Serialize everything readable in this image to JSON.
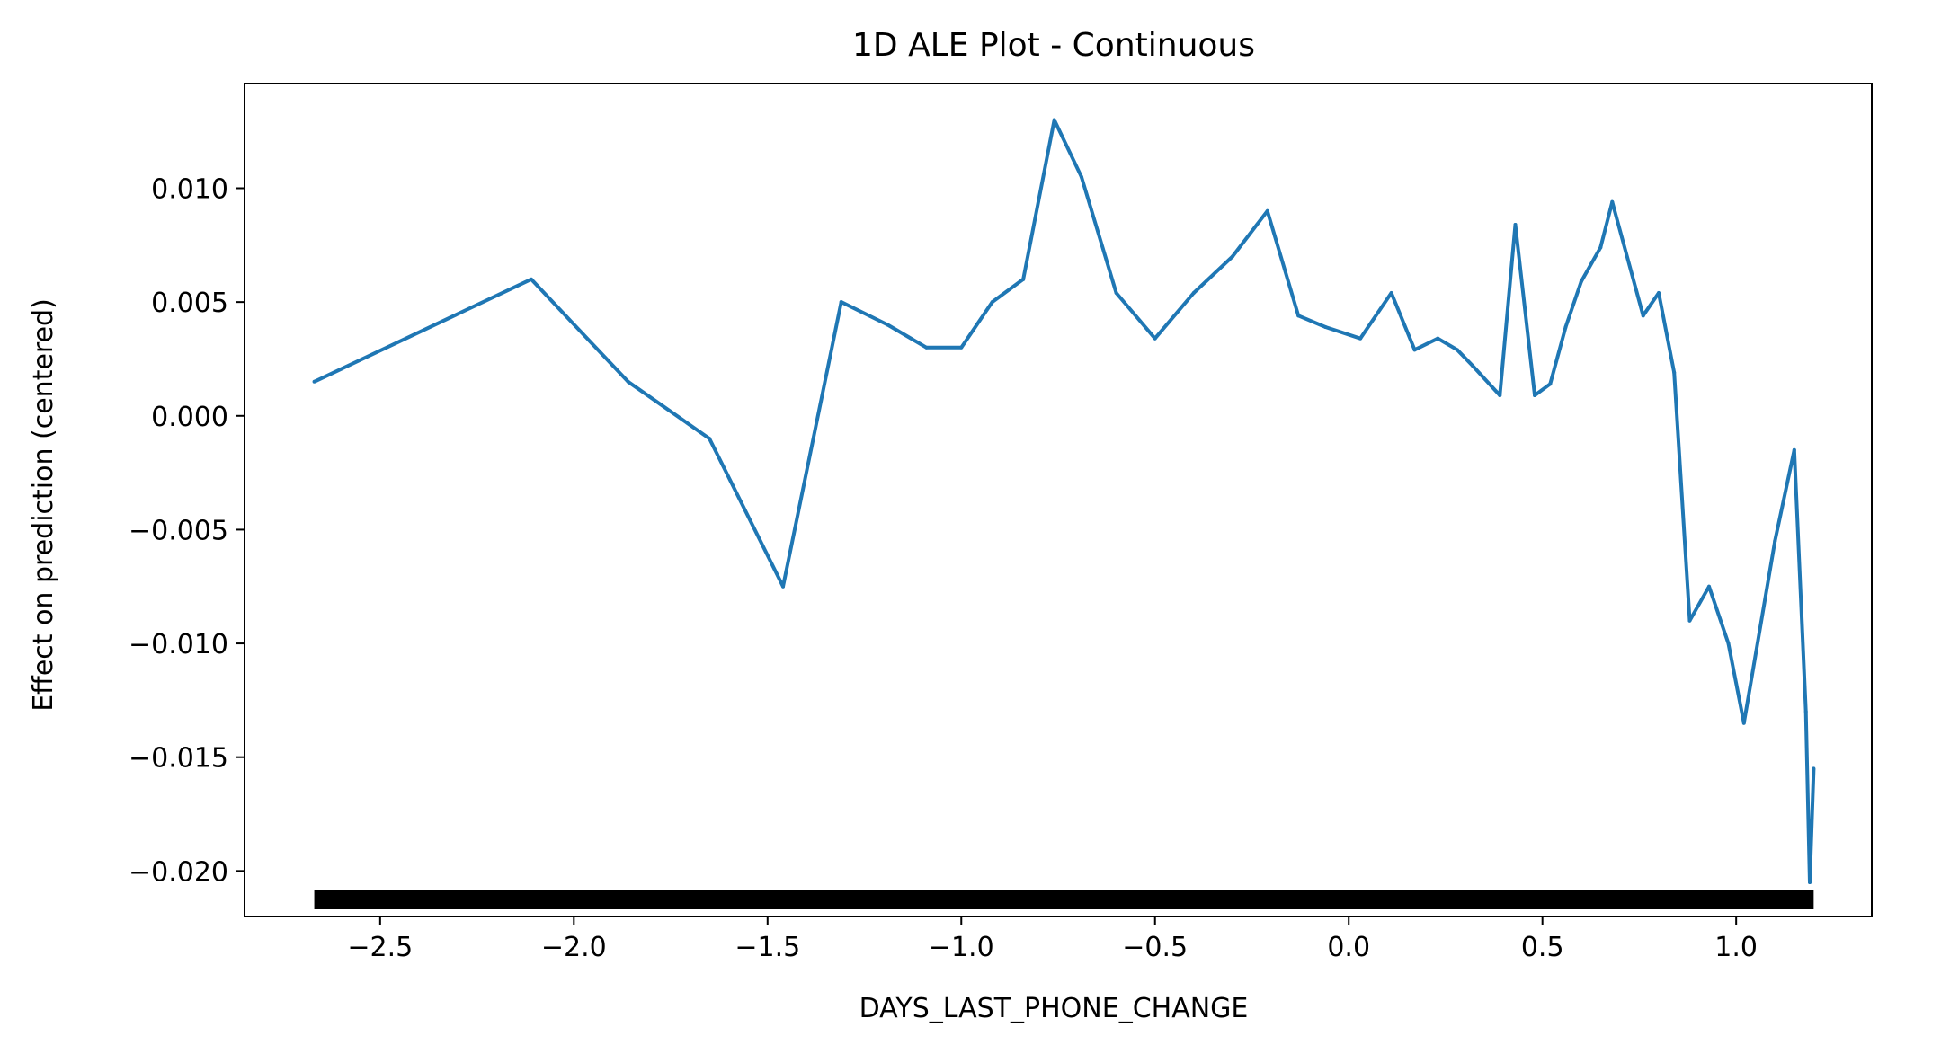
{
  "chart_data": {
    "type": "line",
    "title": "1D ALE Plot - Continuous",
    "xlabel": "DAYS_LAST_PHONE_CHANGE",
    "ylabel": "Effect on prediction (centered)",
    "xlim": [
      -2.85,
      1.35
    ],
    "ylim": [
      -0.022,
      0.0146
    ],
    "xticks": [
      -2.5,
      -2.0,
      -1.5,
      -1.0,
      -0.5,
      0.0,
      0.5,
      1.0
    ],
    "xtick_labels": [
      "−2.5",
      "−2.0",
      "−1.5",
      "−1.0",
      "−0.5",
      "0.0",
      "0.5",
      "1.0"
    ],
    "yticks": [
      -0.02,
      -0.015,
      -0.01,
      -0.005,
      0.0,
      0.005,
      0.01
    ],
    "ytick_labels": [
      "−0.020",
      "−0.015",
      "−0.010",
      "−0.005",
      "0.000",
      "0.005",
      "0.010"
    ],
    "grid": false,
    "series": [
      {
        "color": "#1f77b4",
        "x": [
          -2.67,
          -2.11,
          -1.86,
          -1.65,
          -1.46,
          -1.31,
          -1.19,
          -1.09,
          -1.0,
          -0.92,
          -0.84,
          -0.76,
          -0.69,
          -0.6,
          -0.5,
          -0.4,
          -0.3,
          -0.21,
          -0.13,
          -0.06,
          0.03,
          0.11,
          0.17,
          0.23,
          0.28,
          0.32,
          0.39,
          0.43,
          0.48,
          0.52,
          0.56,
          0.6,
          0.65,
          0.68,
          0.76,
          0.8,
          0.84,
          0.88,
          0.93,
          0.98,
          1.02,
          1.1,
          1.15,
          1.18,
          1.19,
          1.2
        ],
        "y": [
          0.0015,
          0.006,
          0.0015,
          -0.001,
          -0.0075,
          0.005,
          0.004,
          0.003,
          0.003,
          0.005,
          0.006,
          0.013,
          0.0105,
          0.0054,
          0.0034,
          0.0054,
          0.007,
          0.009,
          0.0044,
          0.0039,
          0.0034,
          0.0054,
          0.0029,
          0.0034,
          0.0029,
          0.0022,
          0.0009,
          0.0084,
          0.0009,
          0.0014,
          0.0039,
          0.0059,
          0.0074,
          0.0094,
          0.0044,
          0.0054,
          0.0019,
          -0.009,
          -0.0075,
          -0.01,
          -0.0135,
          -0.0055,
          -0.0015,
          -0.013,
          -0.0205,
          -0.0155
        ]
      }
    ],
    "rug": {
      "color": "#000000",
      "x_min": -2.67,
      "x_max": 1.2
    }
  }
}
